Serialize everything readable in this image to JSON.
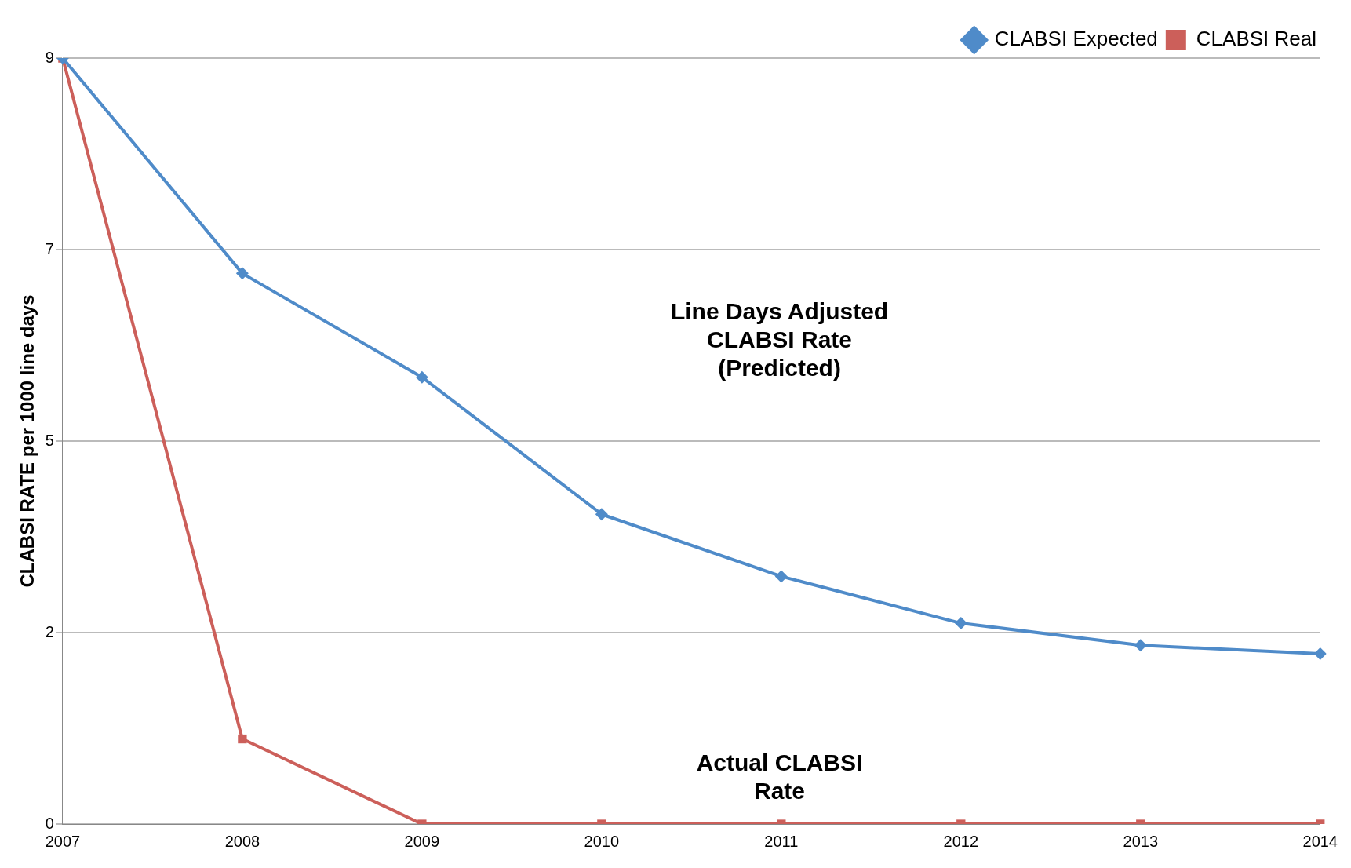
{
  "chart_data": {
    "type": "line",
    "ylabel": "CLABSI RATE per 1000 line days",
    "categories": [
      "2007",
      "2008",
      "2009",
      "2010",
      "2011",
      "2012",
      "2013",
      "2014"
    ],
    "series": [
      {
        "name": "CLABSI Expected",
        "color": "#4f8bc9",
        "marker": "diamond",
        "values": [
          9,
          6.47,
          5.25,
          3.64,
          2.91,
          2.36,
          2.1,
          2.0
        ]
      },
      {
        "name": "CLABSI Real",
        "color": "#cc5f5a",
        "marker": "square",
        "values": [
          9,
          1.0,
          0,
          0,
          0,
          0,
          0,
          0
        ]
      }
    ],
    "ylim": [
      0,
      9
    ],
    "yticks": [
      0,
      {
        "value": 2.25,
        "label": "2"
      },
      {
        "value": 4.5,
        "label": "5"
      },
      {
        "value": 6.75,
        "label": "7"
      },
      9
    ],
    "grid": "y",
    "legend": "top right",
    "line_style": "solid",
    "annotations": [
      "Line Days Adjusted\nCLABSI Rate\n(Predicted)",
      "Actual CLABSI\nRate"
    ]
  }
}
